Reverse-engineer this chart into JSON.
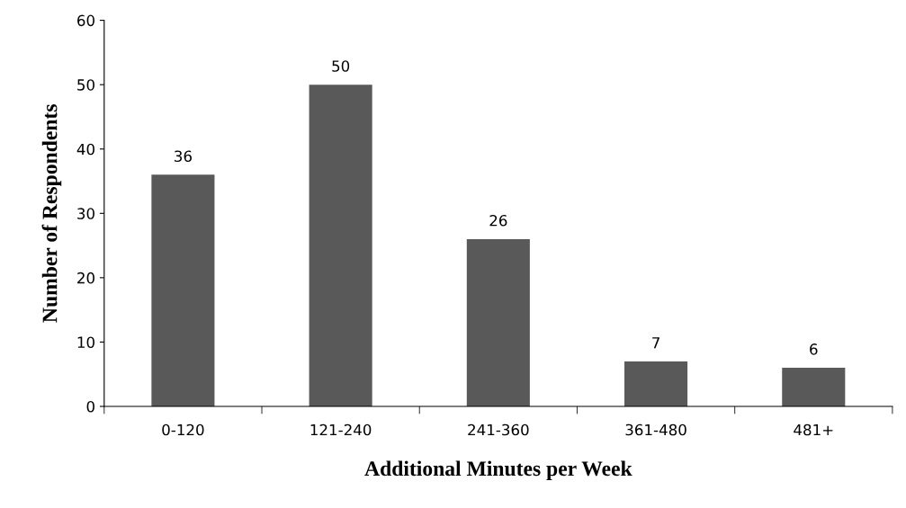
{
  "chart_data": {
    "type": "bar",
    "xlabel": "Additional Minutes per Week",
    "ylabel": "Number of Respondents",
    "categories": [
      "0-120",
      "121-240",
      "241-360",
      "361-480",
      "481+"
    ],
    "values": [
      36,
      50,
      26,
      7,
      6
    ],
    "color": "#595959",
    "ylim": [
      0,
      60
    ],
    "yticks": [
      0,
      10,
      20,
      30,
      40,
      50,
      60
    ],
    "grid": false,
    "data_labels": true
  }
}
